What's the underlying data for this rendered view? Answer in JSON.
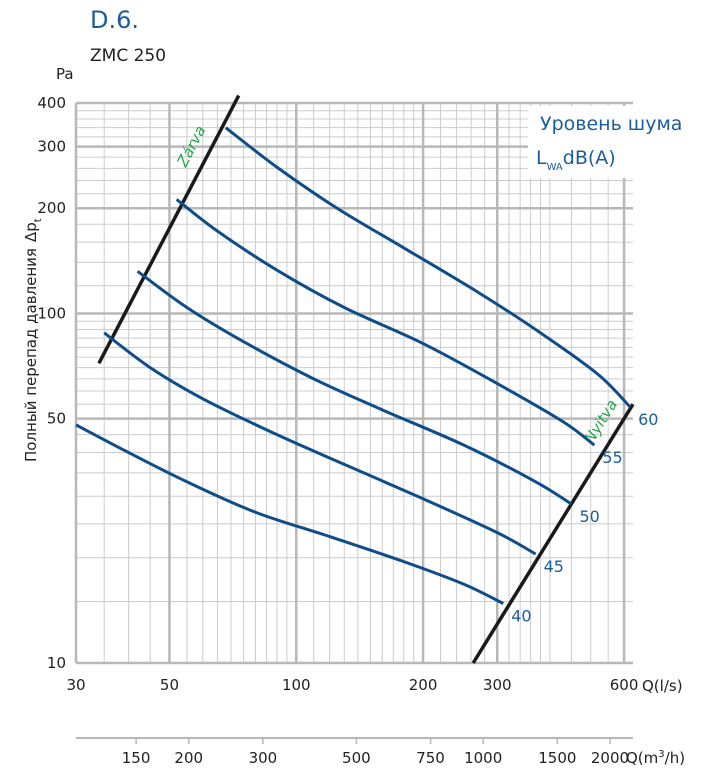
{
  "title": "D.6.",
  "subtitle": "ZMC 250",
  "chart_data": {
    "type": "line",
    "x_scale": "log",
    "y_scale": "log",
    "xlim": [
      30,
      630
    ],
    "ylim": [
      10,
      400
    ],
    "x_ticks": [
      30,
      50,
      100,
      200,
      300,
      600
    ],
    "x_tick_labels": [
      "30",
      "50",
      "100",
      "200",
      "300",
      "600"
    ],
    "x_unit": "Q(l/s)",
    "x2_ticks": [
      150,
      200,
      300,
      500,
      750,
      1000,
      1500,
      2000
    ],
    "x2_tick_labels": [
      "150",
      "200",
      "300",
      "500",
      "750",
      "1000",
      "1500",
      "2000"
    ],
    "x2_unit": "Q(m³/h)",
    "x2_unit_base": "Q(m",
    "x2_unit_sup": "3",
    "x2_unit_tail": "/h)",
    "y_ticks": [
      10,
      50,
      100,
      200,
      300,
      400
    ],
    "y_tick_labels": [
      "10",
      "50",
      "100",
      "200",
      "300",
      "400"
    ],
    "y_unit": "Pa",
    "ylabel": "Полный перепад давления",
    "ylabel_symbol": "Δp",
    "ylabel_symbol_sub": "t",
    "legend_title": "Уровень шума",
    "legend_unit_base": "L",
    "legend_unit_sub": "WA",
    "legend_unit_tail": "dB(A)",
    "grid": true,
    "series": [
      {
        "name": "40",
        "x": [
          30,
          40,
          55,
          80,
          120,
          180,
          250,
          310
        ],
        "y": [
          48,
          40,
          33,
          27,
          23,
          19.5,
          16.8,
          14.8
        ]
      },
      {
        "name": "45",
        "x": [
          35,
          45,
          60,
          90,
          130,
          200,
          300,
          370
        ],
        "y": [
          88,
          70,
          57,
          45,
          37,
          29.5,
          23.6,
          20.5
        ]
      },
      {
        "name": "50",
        "x": [
          42,
          55,
          75,
          110,
          160,
          250,
          370,
          450
        ],
        "y": [
          132,
          104,
          83,
          65,
          53,
          42,
          33,
          28.5
        ]
      },
      {
        "name": "55",
        "x": [
          52,
          65,
          90,
          130,
          200,
          300,
          430,
          510
        ],
        "y": [
          212,
          172,
          133,
          104,
          82,
          63,
          49,
          42
        ]
      },
      {
        "name": "60",
        "x": [
          68,
          90,
          125,
          180,
          270,
          380,
          520,
          620
        ],
        "y": [
          340,
          262,
          200,
          154,
          115,
          88,
          67,
          54
        ]
      }
    ],
    "boundaries": [
      {
        "name": "Zárva",
        "color": "#22a64a",
        "x": [
          34,
          73
        ],
        "y": [
          72,
          420
        ]
      },
      {
        "name": "Nyitva",
        "color": "#22a64a",
        "x": [
          263,
          630
        ],
        "y": [
          10,
          55
        ]
      }
    ],
    "colors": {
      "series": "#0e4c8a",
      "boundary": "#1a1a1a",
      "grid": "#cccccc",
      "text": "#1b5e9a",
      "boundary_label": "#22a64a"
    }
  }
}
